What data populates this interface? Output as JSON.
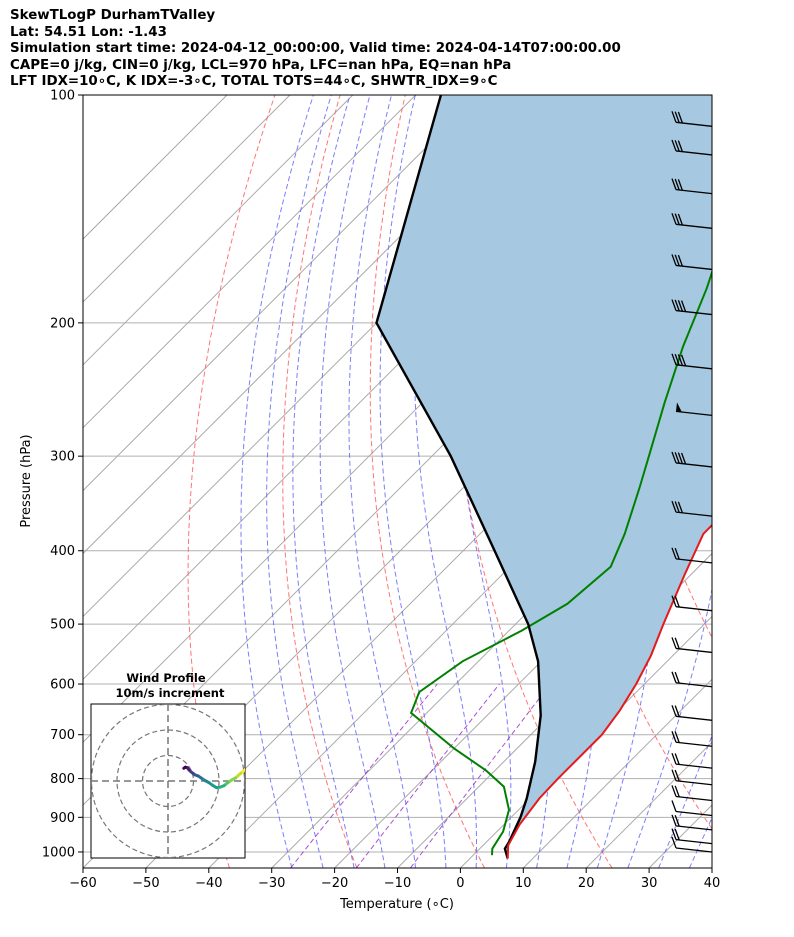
{
  "header": {
    "line1": "SkewTLogP DurhamTValley",
    "line2": "Lat: 54.51   Lon: -1.43",
    "line3": "Simulation start time: 2024-04-12_00:00:00, Valid time: 2024-04-14T07:00:00.00",
    "line4": "CAPE=0 j/kg, CIN=0 j/kg, LCL=970 hPa, LFC=nan hPa, EQ=nan hPa",
    "line5": "LFT IDX=10∘C, K IDX=-3∘C, TOTAL TOTS=44∘C, SHWTR_IDX=9∘C"
  },
  "hodograph": {
    "title": "Wind Profile",
    "subtitle": "10m/s increment"
  },
  "colors": {
    "temperature": "#e41a1c",
    "dewpoint": "#008000",
    "parcel": "#000000",
    "cape_fill": "#a6c8e0",
    "dry_adiabat": "#ff6666",
    "moist_adiabat": "#6666ff",
    "mixing_ratio": "#9933cc",
    "isotherm": "#aaaaaa"
  },
  "chart_data": {
    "type": "line",
    "xlabel": "Temperature (∘C)",
    "ylabel": "Pressure (hPa)",
    "x_ticks": [
      "−60",
      "−50",
      "−40",
      "−30",
      "−20",
      "−10",
      "0",
      "10",
      "20",
      "30",
      "40"
    ],
    "y_ticks": [
      "100",
      "200",
      "300",
      "400",
      "500",
      "600",
      "700",
      "800",
      "900",
      "1000"
    ],
    "xlim": [
      -60,
      40
    ],
    "ylim": [
      1050,
      100
    ],
    "y_scale": "log",
    "skew": "skew-T",
    "grid": true,
    "series": [
      {
        "kind": "temperature",
        "points": [
          [
            6,
            1020
          ],
          [
            4,
            980
          ],
          [
            2.5,
            920
          ],
          [
            1.5,
            850
          ],
          [
            1.3,
            800
          ],
          [
            1.3,
            700
          ],
          [
            0.3,
            650
          ],
          [
            -1.3,
            600
          ],
          [
            -3.5,
            550
          ],
          [
            -6.5,
            500
          ],
          [
            -11,
            430
          ],
          [
            -14.5,
            380
          ],
          [
            -14.5,
            350
          ],
          [
            -17,
            300
          ],
          [
            -20.2,
            260
          ],
          [
            -23,
            240
          ],
          [
            -26.5,
            220
          ],
          [
            -33.5,
            190
          ],
          [
            -39,
            170
          ],
          [
            -43,
            160
          ],
          [
            -45.5,
            140
          ],
          [
            -49,
            130
          ],
          [
            -52.5,
            120
          ],
          [
            -56,
            110
          ],
          [
            -58.5,
            100
          ]
        ]
      },
      {
        "kind": "dewpoint",
        "points": [
          [
            3,
            1010
          ],
          [
            2,
            990
          ],
          [
            1,
            940
          ],
          [
            -1.5,
            880
          ],
          [
            -6,
            820
          ],
          [
            -11.5,
            780
          ],
          [
            -20,
            730
          ],
          [
            -32.5,
            655
          ],
          [
            -34.5,
            615
          ],
          [
            -32.5,
            560
          ],
          [
            -28,
            510
          ],
          [
            -25,
            470
          ],
          [
            -24,
            420
          ],
          [
            -27,
            380
          ],
          [
            -32,
            330
          ],
          [
            -35.5,
            300
          ],
          [
            -41.5,
            255
          ],
          [
            -47.5,
            215
          ],
          [
            -53,
            180
          ],
          [
            -55,
            170
          ],
          [
            -62,
            145
          ],
          [
            -68,
            120
          ],
          [
            -71,
            100
          ]
        ]
      },
      {
        "kind": "parcel",
        "points": [
          [
            6,
            1020
          ],
          [
            4,
            990
          ],
          [
            3.6,
            970
          ],
          [
            1.5,
            900
          ],
          [
            -0.5,
            850
          ],
          [
            -5,
            760
          ],
          [
            -11.5,
            660
          ],
          [
            -20.5,
            560
          ],
          [
            -28,
            500
          ],
          [
            -45,
            400
          ],
          [
            -67,
            300
          ],
          [
            -100,
            200
          ],
          [
            -126,
            100
          ]
        ]
      }
    ],
    "wind_barbs": [
      {
        "p": 1000,
        "barbs": 1
      },
      {
        "p": 975,
        "barbs": 2
      },
      {
        "p": 935,
        "barbs": 2
      },
      {
        "p": 895,
        "barbs": 1
      },
      {
        "p": 855,
        "barbs": 2
      },
      {
        "p": 815,
        "barbs": 2
      },
      {
        "p": 775,
        "barbs": 2
      },
      {
        "p": 725,
        "barbs": 2
      },
      {
        "p": 670,
        "barbs": 2
      },
      {
        "p": 605,
        "barbs": 2
      },
      {
        "p": 545,
        "barbs": 2
      },
      {
        "p": 480,
        "barbs": 2
      },
      {
        "p": 415,
        "barbs": 2
      },
      {
        "p": 360,
        "barbs": 3
      },
      {
        "p": 310,
        "barbs": 4
      },
      {
        "p": 265,
        "pennant": true
      },
      {
        "p": 230,
        "barbs": 4
      },
      {
        "p": 195,
        "barbs": 4
      },
      {
        "p": 170,
        "barbs": 3
      },
      {
        "p": 150,
        "barbs": 3
      },
      {
        "p": 135,
        "barbs": 3
      },
      {
        "p": 120,
        "barbs": 3
      },
      {
        "p": 110,
        "barbs": 3
      }
    ],
    "hodograph_rings": [
      10,
      20,
      30
    ]
  }
}
